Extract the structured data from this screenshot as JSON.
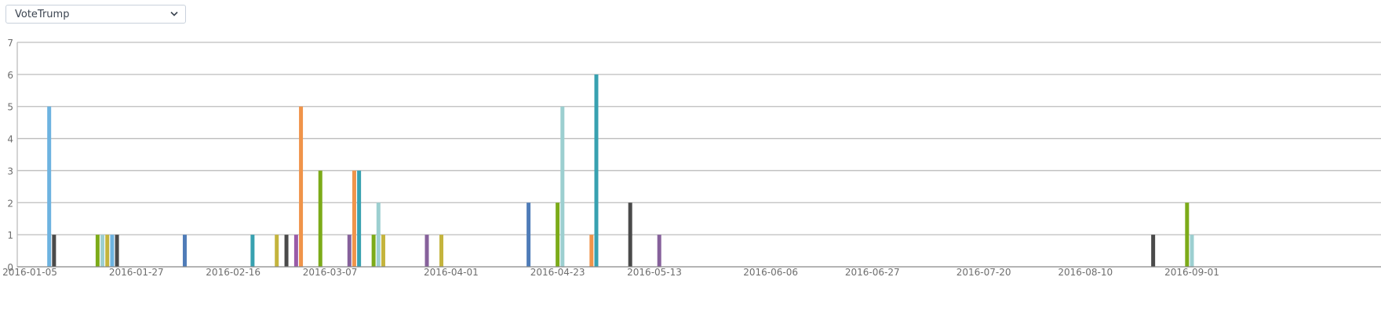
{
  "selector": {
    "selected": "VoteTrump"
  },
  "chart_data": {
    "type": "bar",
    "title": "",
    "xlabel": "",
    "ylabel": "",
    "ylim": [
      0,
      7
    ],
    "yticks": [
      0,
      1,
      2,
      3,
      4,
      5,
      6,
      7
    ],
    "xlim": [
      "2016-01-05",
      "2016-09-01"
    ],
    "xticks": [
      "2016-01-05",
      "2016-01-27",
      "2016-02-16",
      "2016-03-07",
      "2016-04-01",
      "2016-04-23",
      "2016-05-13",
      "2016-06-06",
      "2016-06-27",
      "2016-07-20",
      "2016-08-10",
      "2016-09-01"
    ],
    "grid": true,
    "legend": "none",
    "bars": [
      {
        "date": "2016-01-09",
        "value": 5,
        "color": "#6db3e0"
      },
      {
        "date": "2016-01-10",
        "value": 1,
        "color": "#4a4a4a"
      },
      {
        "date": "2016-01-19",
        "value": 1,
        "color": "#7cab19"
      },
      {
        "date": "2016-01-20",
        "value": 1,
        "color": "#9ccfd0"
      },
      {
        "date": "2016-01-21",
        "value": 1,
        "color": "#c4b43d"
      },
      {
        "date": "2016-01-22",
        "value": 1,
        "color": "#6db3e0"
      },
      {
        "date": "2016-01-23",
        "value": 1,
        "color": "#4a4a4a"
      },
      {
        "date": "2016-02-06",
        "value": 1,
        "color": "#4f7cb8"
      },
      {
        "date": "2016-02-20",
        "value": 1,
        "color": "#38a1b0"
      },
      {
        "date": "2016-02-25",
        "value": 1,
        "color": "#c4b43d"
      },
      {
        "date": "2016-02-27",
        "value": 1,
        "color": "#4a4a4a"
      },
      {
        "date": "2016-02-29",
        "value": 1,
        "color": "#9a5ba8"
      },
      {
        "date": "2016-03-01",
        "value": 5,
        "color": "#f0944a"
      },
      {
        "date": "2016-03-05",
        "value": 3,
        "color": "#7cab19"
      },
      {
        "date": "2016-03-11",
        "value": 1,
        "color": "#86619b"
      },
      {
        "date": "2016-03-12",
        "value": 3,
        "color": "#f0944a"
      },
      {
        "date": "2016-03-13",
        "value": 3,
        "color": "#38a1b0"
      },
      {
        "date": "2016-03-16",
        "value": 1,
        "color": "#7cab19"
      },
      {
        "date": "2016-03-17",
        "value": 2,
        "color": "#9ccfd0"
      },
      {
        "date": "2016-03-18",
        "value": 1,
        "color": "#c4b43d"
      },
      {
        "date": "2016-03-27",
        "value": 1,
        "color": "#86619b"
      },
      {
        "date": "2016-03-30",
        "value": 1,
        "color": "#c4b43d"
      },
      {
        "date": "2016-04-17",
        "value": 2,
        "color": "#4f7cb8"
      },
      {
        "date": "2016-04-23",
        "value": 2,
        "color": "#7cab19"
      },
      {
        "date": "2016-04-24",
        "value": 5,
        "color": "#9ccfd0"
      },
      {
        "date": "2016-04-30",
        "value": 1,
        "color": "#f0944a"
      },
      {
        "date": "2016-05-01",
        "value": 6,
        "color": "#38a1b0"
      },
      {
        "date": "2016-05-08",
        "value": 2,
        "color": "#4a4a4a"
      },
      {
        "date": "2016-05-14",
        "value": 1,
        "color": "#86619b"
      },
      {
        "date": "2016-08-24",
        "value": 1,
        "color": "#4a4a4a"
      },
      {
        "date": "2016-08-31",
        "value": 2,
        "color": "#7cab19"
      },
      {
        "date": "2016-09-01",
        "value": 1,
        "color": "#9ccfd0"
      }
    ]
  }
}
